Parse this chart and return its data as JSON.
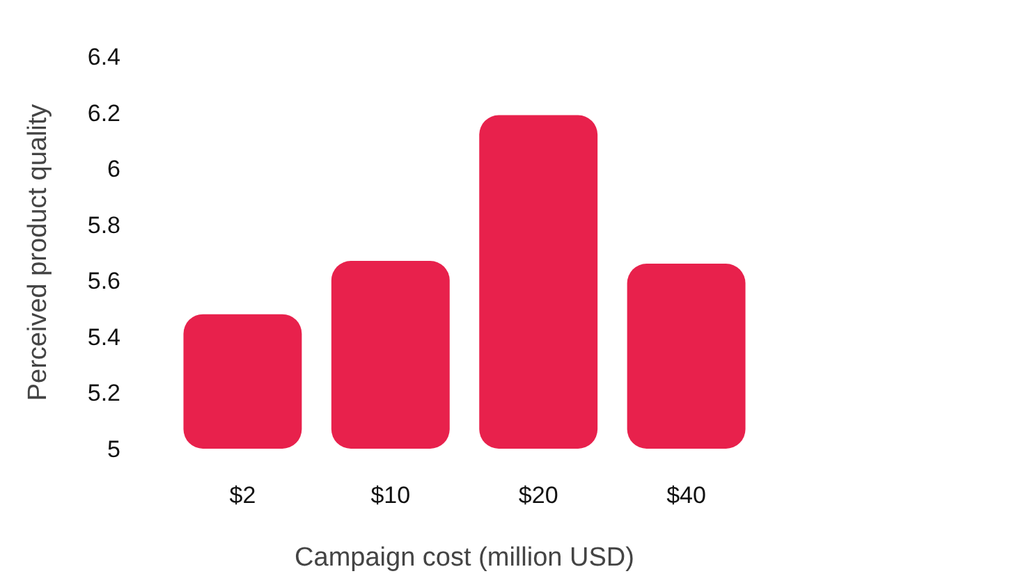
{
  "chart_data": {
    "type": "bar",
    "xlabel": "Campaign cost (million USD)",
    "ylabel": "Perceived product quality",
    "categories": [
      "$2",
      "$10",
      "$20",
      "$40"
    ],
    "values": [
      5.48,
      5.67,
      6.19,
      5.66
    ],
    "color": "#e8214c",
    "ylim": [
      5,
      6.4
    ],
    "yticks": [
      5,
      5.2,
      5.4,
      5.6,
      5.8,
      6,
      6.2,
      6.4
    ],
    "grid": false
  }
}
